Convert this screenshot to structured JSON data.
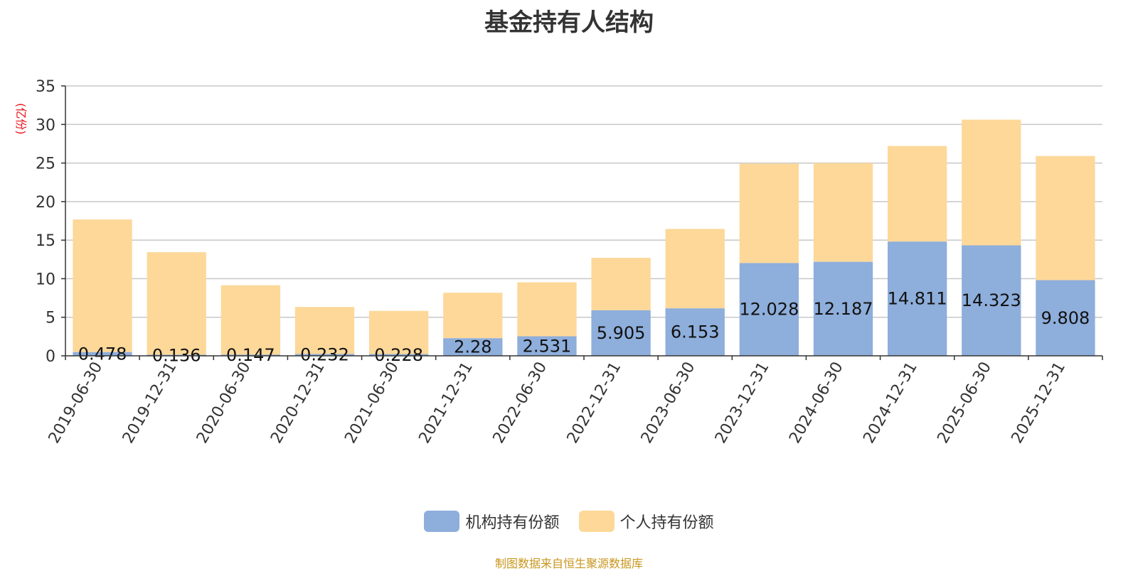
{
  "chart_data": {
    "type": "bar",
    "stacked": true,
    "title": "基金持有人结构",
    "ylabel": "(亿份)",
    "ylim": [
      0,
      35
    ],
    "yticks": [
      0,
      5,
      10,
      15,
      20,
      25,
      30,
      35
    ],
    "grid": true,
    "categories": [
      "2019-06-30",
      "2019-12-31",
      "2020-06-30",
      "2020-12-31",
      "2021-06-30",
      "2021-12-31",
      "2022-06-30",
      "2022-12-31",
      "2023-06-30",
      "2023-12-31",
      "2024-06-30",
      "2024-12-31",
      "2025-06-30",
      "2025-12-31"
    ],
    "series": [
      {
        "name": "机构持有份额",
        "color": "#8eaedb",
        "values": [
          0.478,
          0.136,
          0.147,
          0.232,
          0.228,
          2.28,
          2.531,
          5.905,
          6.153,
          12.028,
          12.187,
          14.811,
          14.323,
          9.808
        ]
      },
      {
        "name": "个人持有份额",
        "color": "#fdd899",
        "values": [
          17.2,
          13.3,
          9.0,
          6.1,
          5.6,
          5.9,
          7.0,
          6.8,
          10.3,
          12.9,
          12.8,
          12.4,
          16.3,
          16.1
        ]
      }
    ],
    "legend_position": "bottom-center"
  },
  "footer": {
    "source": "制图数据来自恒生聚源数据库"
  }
}
